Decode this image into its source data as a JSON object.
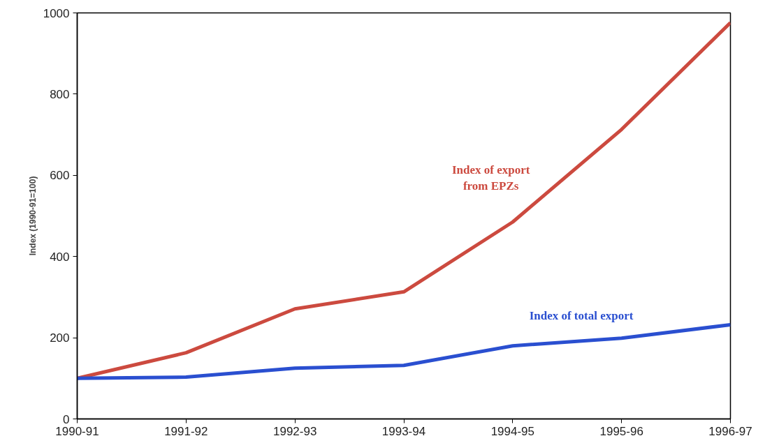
{
  "chart_data": {
    "type": "line",
    "ylabel": "Index (1990-91=100)",
    "categories": [
      "1990-91",
      "1991-92",
      "1992-93",
      "1993-94",
      "1994-95",
      "1995-96",
      "1996-97"
    ],
    "series": [
      {
        "name": "Index of export\nfrom EPZs",
        "color": "#cc4a3f",
        "values": [
          100,
          163,
          271,
          313,
          485,
          713,
          976
        ]
      },
      {
        "name": "Index of total export",
        "color": "#2a4fd0",
        "values": [
          100,
          103,
          125,
          132,
          180,
          199,
          232
        ]
      }
    ],
    "ylim": [
      0,
      1000
    ],
    "yticks": [
      0,
      200,
      400,
      600,
      800,
      1000
    ],
    "grid": false,
    "legend": false,
    "marker": "none",
    "line_style": "solid"
  }
}
